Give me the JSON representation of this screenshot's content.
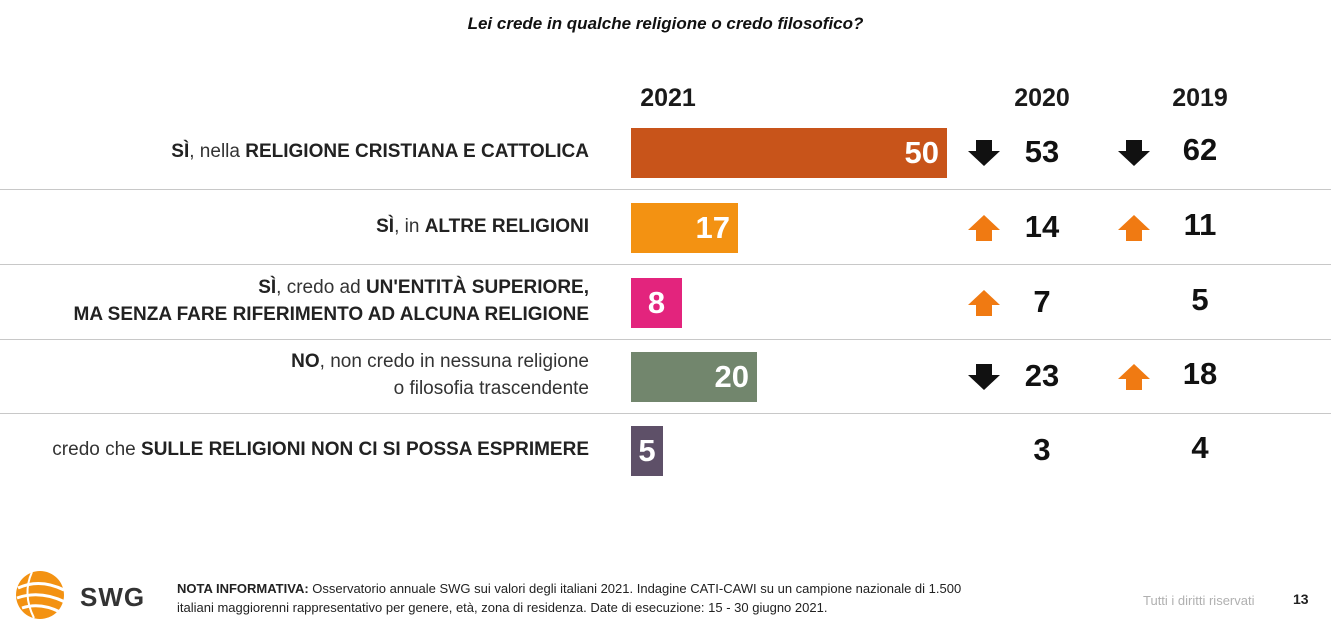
{
  "title": "Lei crede in qualche religione o credo filosofico?",
  "years": {
    "current": "2021",
    "prev1": "2020",
    "prev2": "2019"
  },
  "chart_data": {
    "type": "bar",
    "title": "Lei crede in qualche religione o credo filosofico?",
    "categories": [
      "SÌ, nella RELIGIONE CRISTIANA E CATTOLICA",
      "SÌ, in ALTRE RELIGIONI",
      "SÌ, credo ad UN'ENTITÀ SUPERIORE, MA SENZA FARE RIFERIMENTO AD ALCUNA RELIGIONE",
      "NO, non credo in nessuna religione o filosofia trascendente",
      "credo che SULLE RELIGIONI NON CI SI POSSA ESPRIMERE"
    ],
    "series": [
      {
        "name": "2021",
        "values": [
          50,
          17,
          8,
          20,
          5
        ]
      },
      {
        "name": "2020",
        "values": [
          53,
          14,
          7,
          23,
          3
        ]
      },
      {
        "name": "2019",
        "values": [
          62,
          11,
          5,
          18,
          4
        ]
      }
    ],
    "colors": [
      "#c8541a",
      "#f39212",
      "#e3247d",
      "#72866d",
      "#5e5068"
    ],
    "trend_vs_2020": [
      "down",
      "up",
      "up",
      "down",
      "none"
    ],
    "trend_vs_2019": [
      "down",
      "up",
      "none",
      "up",
      "none"
    ]
  },
  "rows": [
    {
      "label_parts": [
        {
          "t": "SÌ",
          "b": true
        },
        {
          "t": ", nella ",
          "b": false
        },
        {
          "t": "RELIGIONE CRISTIANA E CATTOLICA",
          "b": true
        }
      ],
      "value": "50",
      "prev1": "53",
      "prev2": "62"
    },
    {
      "label_parts": [
        {
          "t": "SÌ",
          "b": true
        },
        {
          "t": ", in ",
          "b": false
        },
        {
          "t": "ALTRE RELIGIONI",
          "b": true
        }
      ],
      "value": "17",
      "prev1": "14",
      "prev2": "11"
    },
    {
      "label_parts": [
        {
          "t": "SÌ",
          "b": true
        },
        {
          "t": ", credo ad ",
          "b": false
        },
        {
          "t": "UN'ENTITÀ SUPERIORE,",
          "b": true
        },
        {
          "t": "\n",
          "b": false
        },
        {
          "t": "MA SENZA FARE RIFERIMENTO AD ALCUNA RELIGIONE",
          "b": true
        }
      ],
      "value": "8",
      "prev1": "7",
      "prev2": "5"
    },
    {
      "label_parts": [
        {
          "t": "NO",
          "b": true
        },
        {
          "t": ", non credo in nessuna religione",
          "b": false
        },
        {
          "t": "\n",
          "b": false
        },
        {
          "t": "o filosofia trascendente",
          "b": false
        }
      ],
      "value": "20",
      "prev1": "23",
      "prev2": "18"
    },
    {
      "label_parts": [
        {
          "t": "credo che ",
          "b": false
        },
        {
          "t": "SULLE RELIGIONI NON CI SI POSSA ESPRIMERE",
          "b": true
        }
      ],
      "value": "5",
      "prev1": "3",
      "prev2": "4"
    }
  ],
  "footer": {
    "logo": "SWG",
    "note_bold": "NOTA INFORMATIVA:",
    "note_text_line1": " Osservatorio annuale SWG sui valori degli italiani 2021. Indagine CATI-CAWI su un campione nazionale di 1.500",
    "note_text_line2": "italiani maggiorenni rappresentativo per genere, età, zona di residenza. Date di esecuzione: 15 - 30 giugno 2021.",
    "rights": "Tutti i diritti riservati",
    "page_number": "13"
  }
}
